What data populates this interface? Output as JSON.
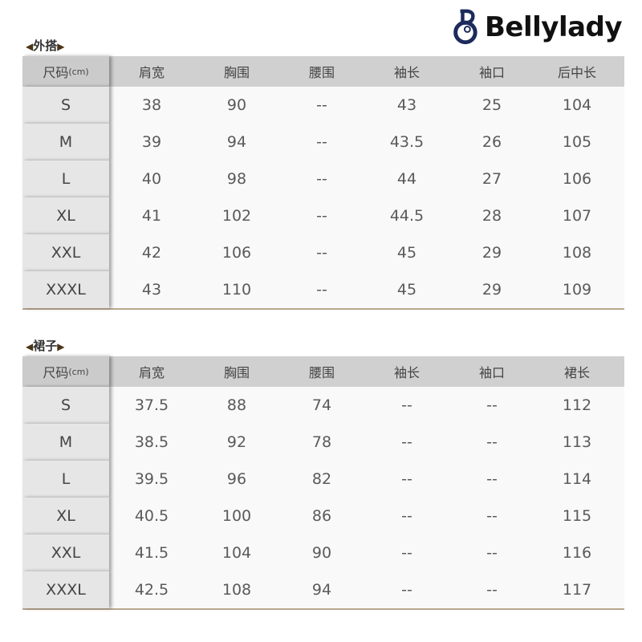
{
  "brand": {
    "name": "Bellylady",
    "color": "#1c2a5c"
  },
  "tables": [
    {
      "title": "外搭",
      "headers": [
        "尺码",
        "肩宽",
        "胸围",
        "腰围",
        "袖长",
        "袖口",
        "后中长"
      ],
      "unit": "(cm)",
      "rows": [
        [
          "S",
          "38",
          "90",
          "--",
          "43",
          "25",
          "104"
        ],
        [
          "M",
          "39",
          "94",
          "--",
          "43.5",
          "26",
          "105"
        ],
        [
          "L",
          "40",
          "98",
          "--",
          "44",
          "27",
          "106"
        ],
        [
          "XL",
          "41",
          "102",
          "--",
          "44.5",
          "28",
          "107"
        ],
        [
          "XXL",
          "42",
          "106",
          "--",
          "45",
          "29",
          "108"
        ],
        [
          "XXXL",
          "43",
          "110",
          "--",
          "45",
          "29",
          "109"
        ]
      ]
    },
    {
      "title": "裙子",
      "headers": [
        "尺码",
        "肩宽",
        "胸围",
        "腰围",
        "袖长",
        "袖口",
        "裙长"
      ],
      "unit": "(cm)",
      "rows": [
        [
          "S",
          "37.5",
          "88",
          "74",
          "--",
          "--",
          "112"
        ],
        [
          "M",
          "38.5",
          "92",
          "78",
          "--",
          "--",
          "113"
        ],
        [
          "L",
          "39.5",
          "96",
          "82",
          "--",
          "--",
          "114"
        ],
        [
          "XL",
          "40.5",
          "100",
          "86",
          "--",
          "--",
          "115"
        ],
        [
          "XXL",
          "41.5",
          "104",
          "90",
          "--",
          "--",
          "116"
        ],
        [
          "XXXL",
          "42.5",
          "108",
          "94",
          "--",
          "--",
          "117"
        ]
      ]
    }
  ]
}
